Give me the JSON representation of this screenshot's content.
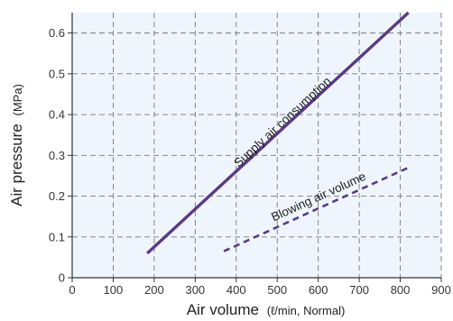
{
  "chart_data": {
    "type": "line",
    "xlabel": "Air volume",
    "xlabel_unit": "(ℓ/min, Normal)",
    "ylabel": "Air pressure",
    "ylabel_unit": "(MPa)",
    "xlim": [
      0,
      900
    ],
    "ylim": [
      0,
      0.65
    ],
    "xticks": [
      0,
      100,
      200,
      300,
      400,
      500,
      600,
      700,
      800,
      900
    ],
    "xtick_labels": [
      "0",
      "100",
      "200",
      "300",
      "400",
      "500",
      "600",
      "700",
      "800",
      "900"
    ],
    "yticks": [
      0,
      0.1,
      0.2,
      0.3,
      0.4,
      0.5,
      0.6
    ],
    "ytick_labels": [
      "0",
      "0.1",
      "0.2",
      "0.3",
      "0.4",
      "0.5",
      "0.6"
    ],
    "grid": true,
    "legend": "none",
    "series": [
      {
        "name": "Supply air consumption",
        "style": "solid",
        "color": "#5b3a86",
        "x": [
          183,
          820
        ],
        "y": [
          0.06,
          0.65
        ]
      },
      {
        "name": "Blowing air volume",
        "style": "dashed",
        "color": "#5b3a86",
        "x": [
          370,
          820
        ],
        "y": [
          0.065,
          0.27
        ]
      }
    ]
  }
}
